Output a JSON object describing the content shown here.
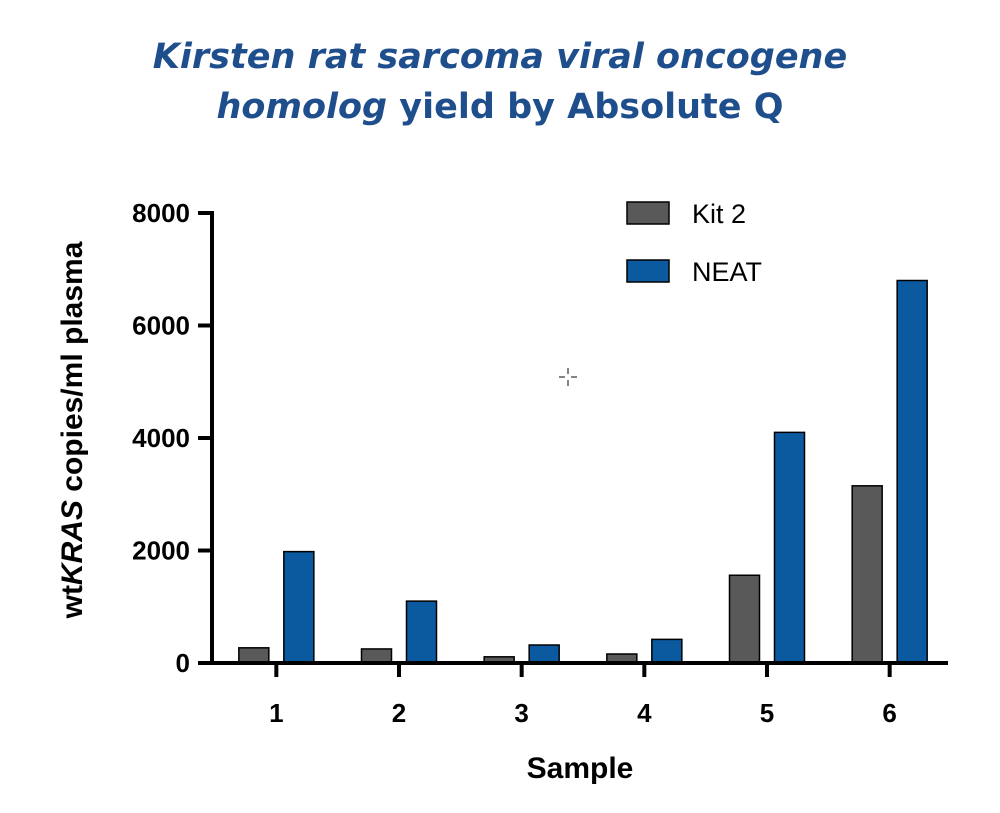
{
  "title": {
    "line1_italic": "Kirsten rat sarcoma viral oncogene",
    "line2_italic": "homolog",
    "line2_rest": " yield by Absolute Q"
  },
  "chart_data": {
    "type": "bar",
    "categories": [
      "1",
      "2",
      "3",
      "4",
      "5",
      "6"
    ],
    "series": [
      {
        "name": "Kit 2",
        "color": "#595959",
        "values": [
          270,
          250,
          110,
          160,
          1560,
          3150
        ]
      },
      {
        "name": "NEAT",
        "color": "#0b5aa0",
        "values": [
          1980,
          1100,
          320,
          420,
          4100,
          6800
        ]
      }
    ],
    "xlabel": "Sample",
    "ylabel_prefix": "wt",
    "ylabel_italic": "KRAS",
    "ylabel_suffix": " copies/ml plasma",
    "ylim": [
      0,
      8000
    ],
    "yticks": [
      "0",
      "2000",
      "4000",
      "6000",
      "8000"
    ],
    "legend_position": "top-right",
    "grid": false
  }
}
